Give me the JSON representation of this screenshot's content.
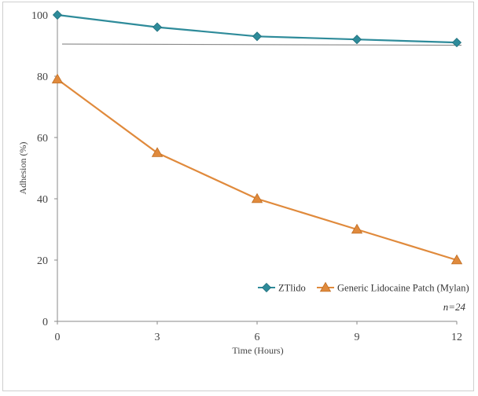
{
  "chart_data": {
    "type": "line",
    "x": [
      0,
      3,
      6,
      9,
      12
    ],
    "xlabel": "Time (Hours)",
    "ylabel": "Adhesion (%)",
    "xlim": [
      0,
      12
    ],
    "ylim": [
      0,
      100
    ],
    "xticks": [
      "0",
      "3",
      "6",
      "9",
      "12"
    ],
    "yticks": [
      "0",
      "20",
      "40",
      "60",
      "80",
      "100"
    ],
    "series": [
      {
        "name": "ZTlido",
        "values": [
          100,
          96,
          93,
          92,
          91
        ],
        "color": "#2e8b9a",
        "marker": "diamond"
      },
      {
        "name": "Generic Lidocaine Patch (Mylan)",
        "values": [
          79,
          55,
          40,
          30,
          20
        ],
        "color": "#e08a3c",
        "marker": "triangle"
      }
    ],
    "reference_line": {
      "y": 90.5,
      "color": "#888888"
    },
    "annotation": "n=24",
    "legend_position": "bottom-right",
    "grid": false
  }
}
